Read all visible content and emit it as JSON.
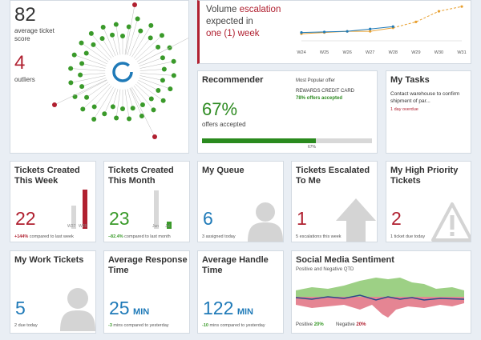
{
  "colors": {
    "blue": "#1f7ab8",
    "red": "#b02030",
    "green": "#3a9a2a",
    "lightgray": "#d8d8d8",
    "orange": "#e8a030"
  },
  "score": {
    "value": "82",
    "label": "average ticket score",
    "outliers_value": "4",
    "outliers_label": "outliers"
  },
  "escalation": {
    "line1": "Volume ",
    "highlight": "escalation",
    "line2": "expected in",
    "line3": "one (1) week"
  },
  "chart_data": {
    "type": "line",
    "categories": [
      "W24",
      "W25",
      "W26",
      "W27",
      "W28",
      "W29",
      "W30",
      "W31"
    ],
    "series": [
      {
        "name": "",
        "color": "#e8a030",
        "dashed_from": 4,
        "values": [
          42,
          44,
          46,
          46,
          52,
          62,
          80,
          88
        ]
      },
      {
        "name": "",
        "color": "#1f7ab8",
        "values": [
          44,
          45,
          46,
          50,
          54,
          null,
          null,
          null
        ]
      }
    ],
    "ylim": [
      30,
      95
    ]
  },
  "recommender": {
    "title": "Recommender",
    "percent": "67%",
    "sub": "offers accepted",
    "popular_label": "Most Popular offer",
    "offer_name": "REWARDS CREDIT CARD",
    "offer_rate": "78% offers accepted",
    "bar_label": "67%",
    "progress": 0.67
  },
  "tasks": {
    "title": "My Tasks",
    "item": "Contact warehouse to confirm shipment of par...",
    "status": "1 day overdue"
  },
  "tickets_week": {
    "title_l1": "Tickets Created",
    "title_l2": "This Week",
    "value": "22",
    "change": "+144%",
    "change_text": " compared to last week",
    "bar1_label": "W27",
    "bar2_label": "W28",
    "bar1_value": 9,
    "bar2_value": 22
  },
  "tickets_month": {
    "title_l1": "Tickets Created",
    "title_l2": "This Month",
    "value": "23",
    "change": "–82.4%",
    "change_text": " compared to last month",
    "bar1_label": "Jun",
    "bar2_label": "Jul",
    "bar1_value": 131,
    "bar2_value": 23
  },
  "queue": {
    "title": "My Queue",
    "value": "6",
    "sub": "3 assigned today"
  },
  "escalated": {
    "title_l1": "Tickets Escalated",
    "title_l2": "To Me",
    "value": "1",
    "sub": "5 escalations this week"
  },
  "priority": {
    "title_l1": "My High Priority",
    "title_l2": "Tickets",
    "value": "2",
    "sub": "1 ticket due today"
  },
  "work": {
    "title": "My Work Tickets",
    "value": "5",
    "sub": "2 due today"
  },
  "response": {
    "title_l1": "Average Response",
    "title_l2": "Time",
    "value": "25",
    "unit": "MIN",
    "change": "-3",
    "change_text": " mins compared to yesterday"
  },
  "handle": {
    "title_l1": "Average Handle",
    "title_l2": "Time",
    "value": "122",
    "unit": "MIN",
    "change": "-10",
    "change_text": " mins compared to yesterday"
  },
  "social": {
    "title": "Social Media Sentiment",
    "sub": "Positive and Negative QTD",
    "pos_label": "Positive ",
    "pos_value": "20%",
    "neg_label": "Negative ",
    "neg_value": "20%"
  }
}
